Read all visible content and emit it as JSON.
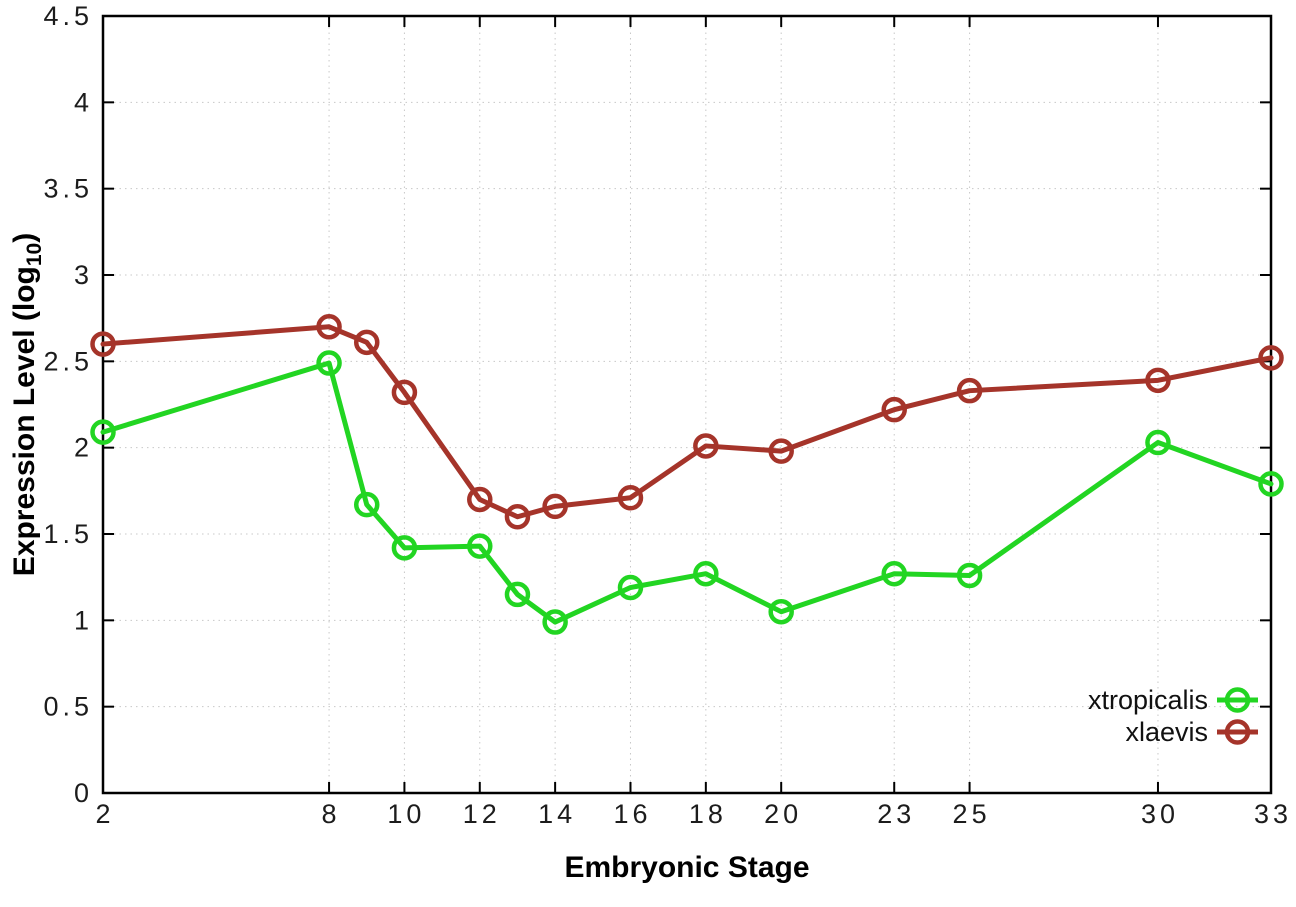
{
  "chart_data": {
    "type": "line",
    "title": "",
    "xlabel": "Embryonic Stage",
    "ylabel": {
      "text": "Expression Level (log10)",
      "main": "Expression Level (log",
      "sub": "10",
      "suffix": ")"
    },
    "x": [
      2,
      8,
      9,
      10,
      12,
      13,
      14,
      16,
      18,
      20,
      23,
      25,
      30,
      33
    ],
    "x_tick_labels": [
      "2",
      "8",
      "10",
      "12",
      "14",
      "16",
      "18",
      "20",
      "23",
      "25",
      "30",
      "33"
    ],
    "x_tick_values": [
      2,
      8,
      10,
      12,
      14,
      16,
      18,
      20,
      23,
      25,
      30,
      33
    ],
    "xlim": [
      2,
      33
    ],
    "y_tick_labels": [
      "0",
      "0.5",
      "1",
      "1.5",
      "2",
      "2.5",
      "3",
      "3.5",
      "4",
      "4.5"
    ],
    "y_tick_values": [
      0,
      0.5,
      1,
      1.5,
      2,
      2.5,
      3,
      3.5,
      4,
      4.5
    ],
    "ylim": [
      0,
      4.5
    ],
    "grid": true,
    "grid_style": "dotted",
    "legend_position": "bottom-right-inside",
    "marker": "open-circle",
    "series": [
      {
        "name": "xtropicalis",
        "color": "#22d522",
        "values": [
          2.09,
          2.49,
          1.67,
          1.42,
          1.43,
          1.15,
          0.99,
          1.19,
          1.27,
          1.05,
          1.27,
          1.26,
          2.03,
          1.79
        ]
      },
      {
        "name": "xlaevis",
        "color": "#a5342a",
        "values": [
          2.6,
          2.7,
          2.61,
          2.32,
          1.7,
          1.6,
          1.66,
          1.71,
          2.01,
          1.98,
          2.22,
          2.33,
          2.39,
          2.52
        ]
      }
    ],
    "colors": {
      "background": "#ffffff",
      "border": "#000000",
      "gridline": "#c8c8c8",
      "tick_text": "#1c1c1c"
    }
  }
}
